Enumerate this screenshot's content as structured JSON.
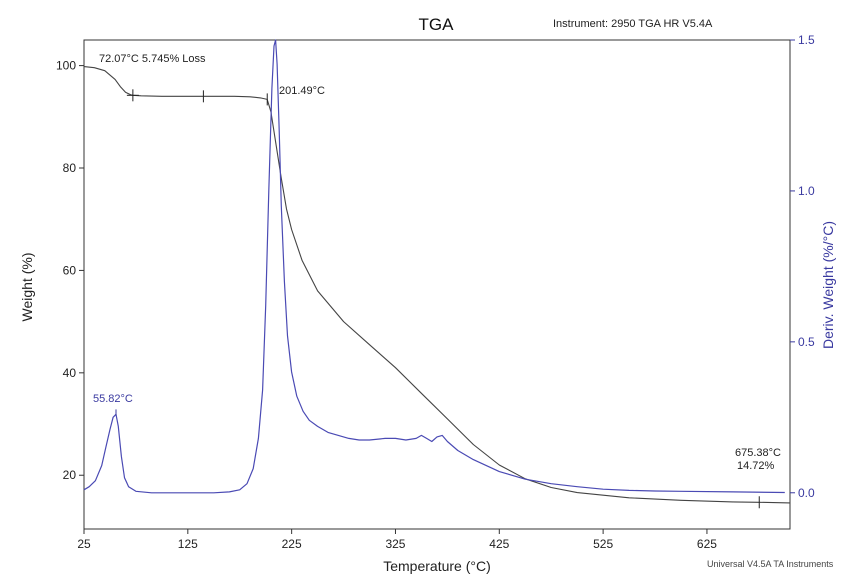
{
  "chart_data": {
    "type": "line",
    "title": "TGA",
    "instrument": "Instrument: 2950 TGA HR V5.4A",
    "footer": "Universal V4.5A TA Instruments",
    "xlabel": "Temperature (°C)",
    "ylabel_left": "Weight (%)",
    "ylabel_right": "Deriv. Weight (%/°C)",
    "xlim": [
      25,
      705
    ],
    "ylim_left": [
      9.5,
      105
    ],
    "ylim_right": [
      -0.12,
      1.5
    ],
    "x_ticks": [
      "25",
      "125",
      "225",
      "325",
      "425",
      "525",
      "625"
    ],
    "y_left_ticks": [
      "20",
      "40",
      "60",
      "80",
      "100"
    ],
    "y_right_ticks": [
      "0.0",
      "0.5",
      "1.0",
      "1.5"
    ],
    "series": [
      {
        "axis": "left",
        "color": "#444444",
        "x": [
          25,
          35,
          45,
          55,
          60,
          65,
          70,
          72,
          80,
          100,
          140,
          170,
          185,
          195,
          201.5,
          205,
          210,
          215,
          220,
          225,
          235,
          250,
          275,
          300,
          325,
          350,
          375,
          400,
          425,
          450,
          475,
          500,
          550,
          600,
          650,
          675,
          705
        ],
        "values": [
          99.8,
          99.6,
          99.0,
          97.3,
          95.9,
          94.8,
          94.3,
          94.2,
          94.1,
          94.0,
          94.0,
          94.0,
          93.9,
          93.7,
          93.4,
          91.0,
          84.5,
          78.0,
          72.0,
          68.0,
          62.0,
          56.0,
          50.0,
          45.5,
          41.0,
          36.0,
          31.0,
          26.0,
          22.0,
          19.3,
          17.6,
          16.6,
          15.6,
          15.1,
          14.8,
          14.72,
          14.6
        ]
      },
      {
        "axis": "right",
        "color": "#4a4ab4",
        "x": [
          25,
          30,
          36,
          42,
          46,
          50,
          53,
          55.8,
          58,
          61,
          64,
          68,
          75,
          90,
          125,
          150,
          165,
          175,
          182,
          188,
          193,
          197,
          200,
          203,
          206,
          208,
          209.5,
          211,
          213,
          215,
          218,
          221,
          225,
          230,
          236,
          242,
          250,
          260,
          270,
          280,
          290,
          300,
          315,
          325,
          335,
          345,
          350,
          355,
          360,
          365,
          370,
          375,
          385,
          400,
          425,
          450,
          475,
          500,
          525,
          550,
          575,
          600,
          650,
          700
        ],
        "values": [
          0.01,
          0.02,
          0.04,
          0.09,
          0.15,
          0.21,
          0.25,
          0.26,
          0.22,
          0.12,
          0.05,
          0.02,
          0.005,
          0.0,
          0.0,
          0.0,
          0.003,
          0.01,
          0.03,
          0.08,
          0.18,
          0.34,
          0.62,
          1.0,
          1.34,
          1.48,
          1.5,
          1.42,
          1.2,
          0.95,
          0.7,
          0.52,
          0.4,
          0.32,
          0.27,
          0.24,
          0.22,
          0.2,
          0.19,
          0.18,
          0.175,
          0.175,
          0.18,
          0.18,
          0.175,
          0.18,
          0.19,
          0.18,
          0.17,
          0.185,
          0.19,
          0.17,
          0.14,
          0.11,
          0.07,
          0.045,
          0.03,
          0.02,
          0.012,
          0.008,
          0.006,
          0.005,
          0.003,
          0.001
        ]
      }
    ],
    "annotations": {
      "step1": "72.07°C 5.745% Loss",
      "onset": "201.49°C",
      "peak": "55.82°C",
      "end_temp": "675.38°C",
      "end_pct": "14.72%"
    }
  }
}
